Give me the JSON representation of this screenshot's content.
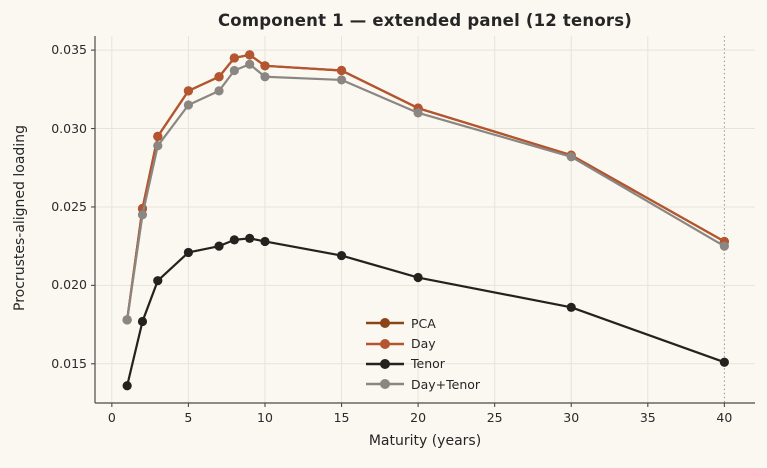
{
  "chart_data": {
    "type": "line",
    "title": "Component 1 — extended panel (12 tenors)",
    "xlabel": "Maturity (years)",
    "ylabel": "Procrustes-aligned loading",
    "x": [
      1,
      2,
      3,
      5,
      7,
      8,
      9,
      10,
      15,
      20,
      30,
      40
    ],
    "series": [
      {
        "name": "PCA",
        "color": "#8a4417",
        "values": [
          0.0178,
          0.0249,
          0.0295,
          0.0324,
          0.0333,
          0.0345,
          0.0347,
          0.034,
          0.0337,
          0.0313,
          0.0283,
          0.0228
        ]
      },
      {
        "name": "Day",
        "color": "#b5552f",
        "values": [
          0.0178,
          0.0249,
          0.0295,
          0.0324,
          0.0333,
          0.0345,
          0.0347,
          0.034,
          0.0337,
          0.0313,
          0.0283,
          0.0228
        ]
      },
      {
        "name": "Tenor",
        "color": "#26211f",
        "values": [
          0.0136,
          0.0177,
          0.0203,
          0.0221,
          0.0225,
          0.0229,
          0.023,
          0.0228,
          0.0219,
          0.0205,
          0.0186,
          0.0151
        ]
      },
      {
        "name": "Day+Tenor",
        "color": "#8b8682",
        "values": [
          0.0178,
          0.0245,
          0.0289,
          0.0315,
          0.0324,
          0.0337,
          0.0341,
          0.0333,
          0.0331,
          0.031,
          0.0282,
          0.0225
        ]
      }
    ],
    "xlim": [
      -1.1,
      42
    ],
    "ylim": [
      0.0125,
      0.0359
    ],
    "xticks": [
      0,
      5,
      10,
      15,
      20,
      25,
      30,
      35,
      40
    ],
    "xtick_labels": [
      "0",
      "5",
      "10",
      "15",
      "20",
      "25",
      "30",
      "35",
      "40"
    ],
    "yticks": [
      0.015,
      0.02,
      0.025,
      0.03,
      0.035
    ],
    "ytick_labels": [
      "0.015",
      "0.020",
      "0.025",
      "0.030",
      "0.035"
    ],
    "grid": true,
    "legend_position": "center",
    "vline": {
      "x": 40,
      "style": "dotted",
      "color": "#97928c"
    }
  },
  "colors": {
    "background": "#faf8f1",
    "grid": "#e6e3db",
    "axis": "#4a4a4a",
    "text": "#262626"
  }
}
